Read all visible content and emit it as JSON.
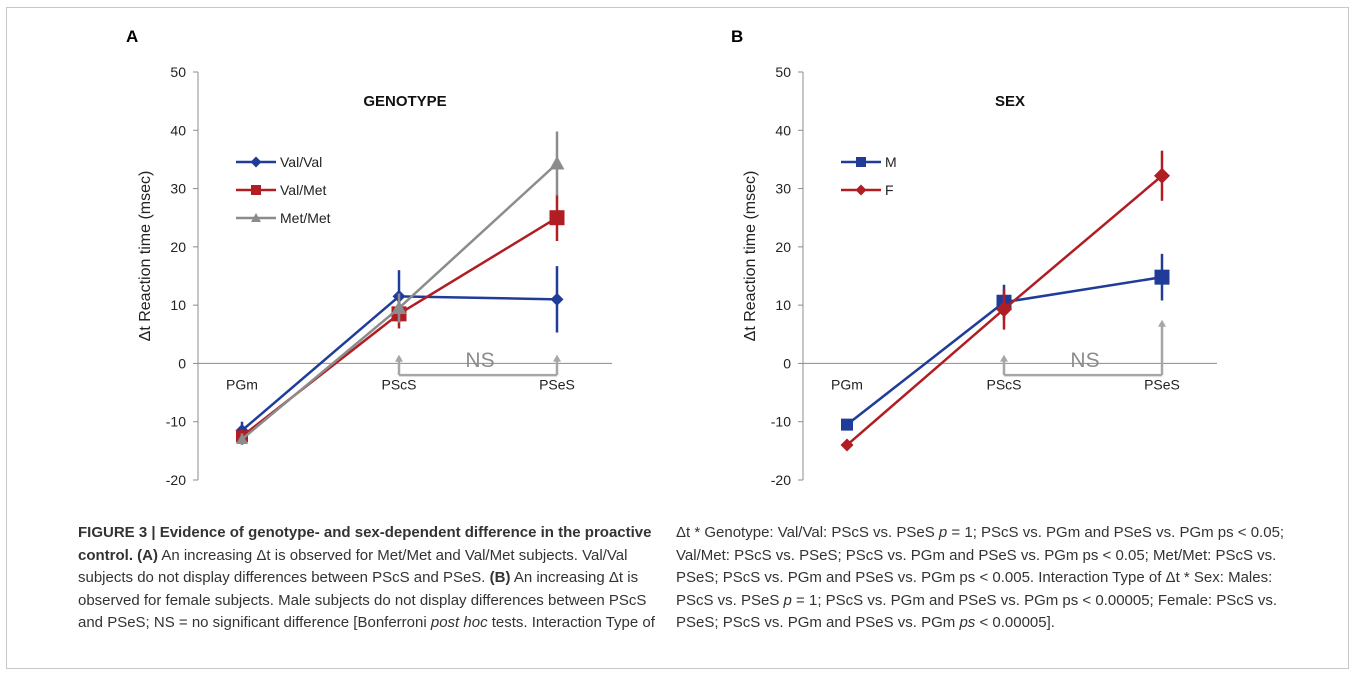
{
  "chart_data": [
    {
      "type": "line",
      "panel_letter": "A",
      "title": "GENOTYPE",
      "xlabel": "",
      "ylabel": "Δt Reaction time (msec)",
      "categories": [
        "PGm",
        "PScS",
        "PSeS"
      ],
      "ylim": [
        -20,
        50
      ],
      "yticks": [
        "-20",
        "-10",
        "0",
        "10",
        "20",
        "30",
        "40",
        "50"
      ],
      "legend_position": "upper-left",
      "series": [
        {
          "name": "Val/Val",
          "color": "#1f3c99",
          "marker": "diamond",
          "values": [
            -11.5,
            11.5,
            11
          ],
          "errors": [
            1.5,
            4.5,
            5.7
          ]
        },
        {
          "name": "Val/Met",
          "color": "#b01e23",
          "marker": "square",
          "values": [
            -12.5,
            8.5,
            25
          ],
          "errors": [
            1.2,
            2.5,
            4
          ]
        },
        {
          "name": "Met/Met",
          "color": "#8c8c8c",
          "marker": "triangle",
          "values": [
            -13,
            9.5,
            34.3
          ],
          "errors": [
            1,
            2.5,
            5.5
          ]
        }
      ],
      "annotation": "NS"
    },
    {
      "type": "line",
      "panel_letter": "B",
      "title": "SEX",
      "xlabel": "",
      "ylabel": "Δt Reaction time (msec)",
      "categories": [
        "PGm",
        "PScS",
        "PSeS"
      ],
      "ylim": [
        -20,
        50
      ],
      "yticks": [
        "-20",
        "-10",
        "0",
        "10",
        "20",
        "30",
        "40",
        "50"
      ],
      "legend_position": "upper-left",
      "series": [
        {
          "name": "M",
          "color": "#1f3c99",
          "marker": "square",
          "values": [
            -10.5,
            10.5,
            14.8
          ],
          "errors": [
            0,
            3,
            4
          ]
        },
        {
          "name": "F",
          "color": "#b01e23",
          "marker": "diamond",
          "values": [
            -14,
            9.3,
            32.2
          ],
          "errors": [
            0,
            3.5,
            4.3
          ]
        }
      ],
      "annotation": "NS"
    }
  ],
  "caption": {
    "label": "FIGURE 3 | Evidence of genotype- and sex-dependent difference in the proactive control.",
    "part_a_tag": "(A)",
    "part_a_text": " An increasing Δt is observed for Met/Met and Val/Met subjects. Val/Val subjects do not display differences between PScS and PSeS. ",
    "part_b_tag": "(B)",
    "part_b_text1": " An increasing Δt is observed for female subjects. Male subjects do not display differences between PScS and PSeS; NS = no significant difference [Bonferroni ",
    "post_hoc": "post hoc",
    "part_b_text2": " tests. Interaction Type of",
    "right_1": "Δt * Genotype: Val/Val: PScS vs. PSeS ",
    "p_italic": "p",
    "right_2": " = 1; PScS vs. PGm and PSeS vs. PGm ps < 0.05; Val/Met: PScS vs. PSeS; PScS vs. PGm and PSeS vs. PGm ps < 0.05; Met/Met: PScS vs. PSeS; PScS vs. PGm and PSeS vs. PGm ps < 0.005. Interaction Type of Δt * Sex: Males: PScS vs. PSeS ",
    "right_3": " = 1; PScS vs. PGm and PSeS vs. PGm ps < 0.00005; Female: PScS vs. PSeS; PScS vs. PGm and PSeS vs. PGm ",
    "ps_italic": "ps",
    "right_4": " < 0.00005]."
  }
}
